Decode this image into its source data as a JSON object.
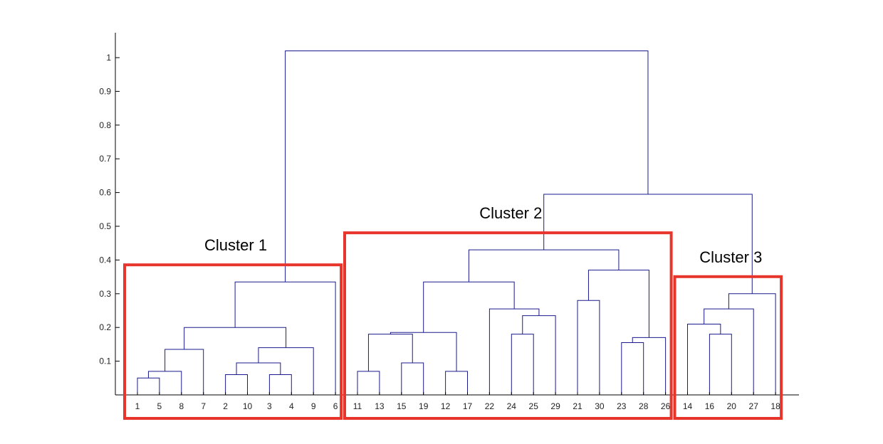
{
  "chart_data": {
    "type": "dendrogram",
    "title": "",
    "xlabel": "",
    "ylabel": "",
    "ylim": [
      0,
      1.05
    ],
    "y_ticks": [
      0.1,
      0.2,
      0.3,
      0.4,
      0.5,
      0.6,
      0.7,
      0.8,
      0.9,
      1
    ],
    "leaf_order": [
      "1",
      "5",
      "8",
      "7",
      "2",
      "10",
      "3",
      "4",
      "9",
      "6",
      "11",
      "13",
      "15",
      "19",
      "12",
      "17",
      "22",
      "24",
      "25",
      "29",
      "21",
      "30",
      "23",
      "28",
      "26",
      "14",
      "16",
      "20",
      "27",
      "18"
    ],
    "line_color": "#1a1a8c",
    "merges": [
      {
        "id": "A",
        "left": "1",
        "right": "5",
        "height": 0.05
      },
      {
        "id": "B",
        "left": "A",
        "right": "8",
        "height": 0.07
      },
      {
        "id": "C",
        "left": "B",
        "right": "7",
        "height": 0.135
      },
      {
        "id": "D",
        "left": "2",
        "right": "10",
        "height": 0.06
      },
      {
        "id": "E",
        "left": "3",
        "right": "4",
        "height": 0.06
      },
      {
        "id": "F",
        "left": "D",
        "right": "E",
        "height": 0.095
      },
      {
        "id": "G",
        "left": "F",
        "right": "9",
        "height": 0.14
      },
      {
        "id": "H",
        "left": "C",
        "right": "G",
        "height": 0.2
      },
      {
        "id": "I",
        "left": "H",
        "right": "6",
        "height": 0.335
      },
      {
        "id": "J",
        "left": "11",
        "right": "13",
        "height": 0.07
      },
      {
        "id": "K",
        "left": "15",
        "right": "19",
        "height": 0.095
      },
      {
        "id": "L",
        "left": "J",
        "right": "K",
        "height": 0.18
      },
      {
        "id": "M",
        "left": "12",
        "right": "17",
        "height": 0.07
      },
      {
        "id": "N",
        "left": "L",
        "right": "M",
        "height": 0.185
      },
      {
        "id": "O",
        "left": "24",
        "right": "25",
        "height": 0.18
      },
      {
        "id": "P",
        "left": "O",
        "right": "29",
        "height": 0.235
      },
      {
        "id": "Q",
        "left": "22",
        "right": "P",
        "height": 0.255
      },
      {
        "id": "R",
        "left": "N",
        "right": "Q",
        "height": 0.335
      },
      {
        "id": "S",
        "left": "21",
        "right": "30",
        "height": 0.28
      },
      {
        "id": "T",
        "left": "23",
        "right": "28",
        "height": 0.155
      },
      {
        "id": "U",
        "left": "T",
        "right": "26",
        "height": 0.17
      },
      {
        "id": "V",
        "left": "S",
        "right": "U",
        "height": 0.37
      },
      {
        "id": "W",
        "left": "R",
        "right": "V",
        "height": 0.43
      },
      {
        "id": "X",
        "left": "16",
        "right": "20",
        "height": 0.18
      },
      {
        "id": "Y",
        "left": "14",
        "right": "X",
        "height": 0.21
      },
      {
        "id": "Z",
        "left": "Y",
        "right": "27",
        "height": 0.255
      },
      {
        "id": "AA",
        "left": "Z",
        "right": "18",
        "height": 0.3
      },
      {
        "id": "AB",
        "left": "W",
        "right": "AA",
        "height": 0.595
      },
      {
        "id": "AC",
        "left": "I",
        "right": "AB",
        "height": 1.02
      }
    ],
    "annotations": [
      {
        "label": "Cluster 1",
        "first_leaf": "1",
        "last_leaf": "6",
        "color": "#e8352c"
      },
      {
        "label": "Cluster 2",
        "first_leaf": "11",
        "last_leaf": "26",
        "color": "#e8352c"
      },
      {
        "label": "Cluster 3",
        "first_leaf": "14",
        "last_leaf": "18",
        "color": "#e8352c"
      }
    ]
  }
}
